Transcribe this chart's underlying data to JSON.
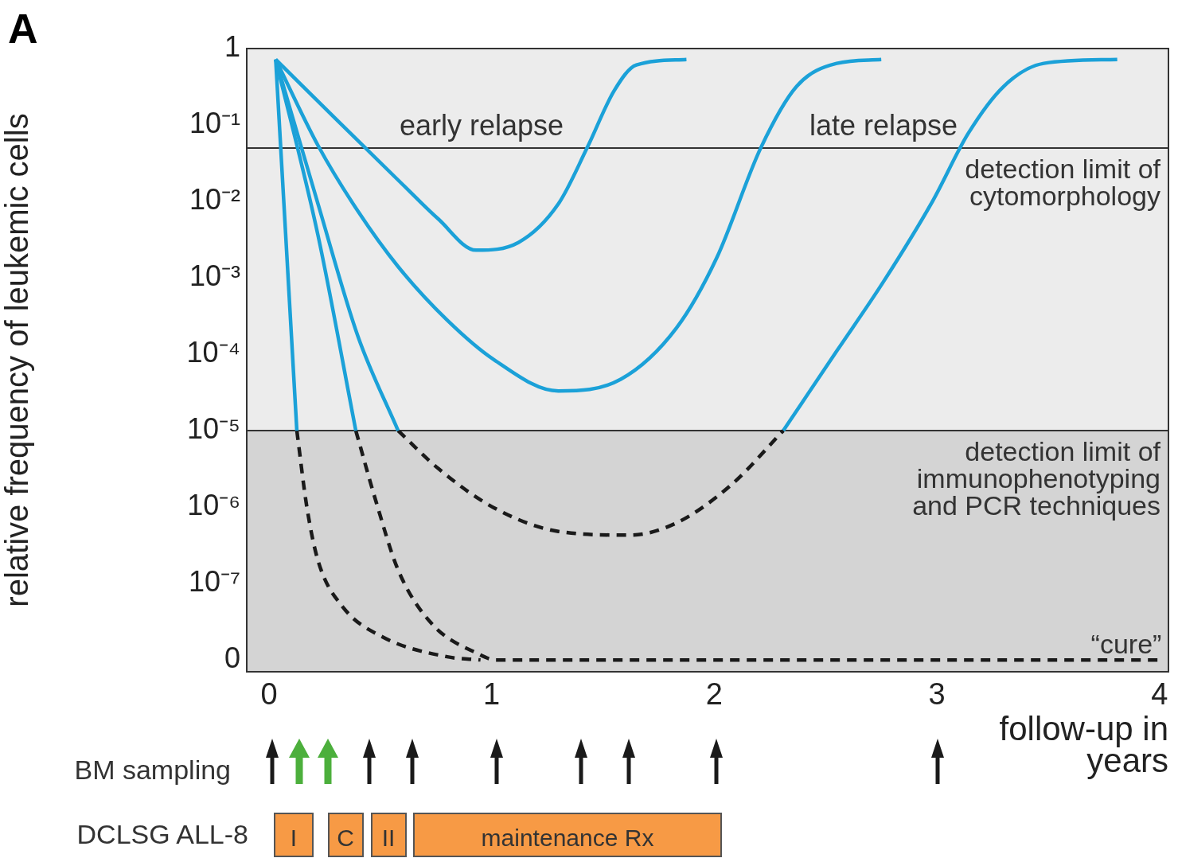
{
  "chart_data": {
    "type": "line",
    "title": "A",
    "xlabel": "follow-up in years",
    "ylabel": "relative frequency of leukemic cells",
    "log": "y",
    "grid": false,
    "legend": false,
    "xlim": [
      -0.1,
      4.04
    ],
    "xticks": [
      0,
      1,
      2,
      3,
      4
    ],
    "ylim": [
      7e-09,
      1
    ],
    "yticks": [
      1,
      {
        "value": 0.1,
        "label": "10⁻¹"
      },
      {
        "value": 0.01,
        "label": "10⁻²"
      },
      {
        "value": 0.001,
        "label": "10⁻³"
      },
      {
        "value": 0.0001,
        "label": "10⁻⁴"
      },
      {
        "value": 1e-05,
        "label": "10⁻⁵"
      },
      {
        "value": 1e-06,
        "label": "10⁻⁶"
      },
      {
        "value": 1e-07,
        "label": "10⁻⁷"
      },
      {
        "value": 1e-08,
        "label": "0"
      }
    ],
    "bands": [
      {
        "axis": "y",
        "from": 1e-05,
        "to": 1,
        "color": "#ececec"
      },
      {
        "axis": "y",
        "from": 7e-09,
        "to": 1e-05,
        "color": "#d4d4d4",
        "label": "detection limit of\nimmunophenotyping\nand PCR techniques"
      }
    ],
    "ref_lines": [
      {
        "axis": "y",
        "value": 0.05,
        "label": "detection limit of\ncytomorphology",
        "color": "#333333"
      },
      {
        "axis": "y",
        "value": 1e-05,
        "color": "#333333"
      }
    ],
    "annotations": [
      "early relapse",
      "late relapse",
      "“cure”",
      "BM sampling",
      "DCLSG ALL-8",
      "I",
      "C",
      "II",
      "maintenance Rx"
    ],
    "series": [
      {
        "color": "#1ba1d8",
        "line_style": "solid",
        "x": [
          0.03,
          0.3,
          0.58,
          0.76,
          0.93,
          1.12,
          1.3,
          1.43,
          1.55,
          1.65,
          1.875
        ],
        "values": [
          0.72,
          0.12,
          0.019,
          0.0059,
          0.0023,
          0.0029,
          0.0093,
          0.051,
          0.28,
          0.61,
          0.72
        ]
      },
      {
        "color": "#1ba1d8",
        "line_style": "solid",
        "x": [
          0.03,
          0.22,
          0.4,
          0.58,
          0.8,
          1.01,
          1.3,
          1.58,
          1.83,
          2.01,
          2.21,
          2.37,
          2.55,
          2.75
        ],
        "values": [
          0.72,
          0.054,
          0.0074,
          0.0014,
          0.00028,
          8.5e-05,
          3.3e-05,
          4.7e-05,
          0.00022,
          0.0018,
          0.051,
          0.32,
          0.64,
          0.72
        ]
      },
      {
        "color": "#1ba1d8",
        "line_style": "solid",
        "x": [
          0.03,
          0.22,
          0.4,
          0.58
        ],
        "values": [
          0.72,
          0.0093,
          0.00017,
          1e-05
        ]
      },
      {
        "color": "#1a1a1a",
        "line_style": "dashed",
        "x": [
          0.58,
          0.76,
          1.01,
          1.3,
          1.62,
          1.83,
          2.08,
          2.31
        ],
        "values": [
          1e-05,
          3.2e-06,
          9.8e-07,
          4.8e-07,
          4.3e-07,
          6.2e-07,
          2e-06,
          1e-05
        ]
      },
      {
        "color": "#1ba1d8",
        "line_style": "solid",
        "x": [
          2.31,
          2.55,
          2.76,
          2.98,
          3.14,
          3.3,
          3.48,
          3.81
        ],
        "values": [
          1e-05,
          0.00011,
          0.00089,
          0.01,
          0.077,
          0.32,
          0.64,
          0.72
        ]
      },
      {
        "color": "#1ba1d8",
        "line_style": "solid",
        "x": [
          0.03,
          0.22,
          0.39
        ],
        "values": [
          0.72,
          0.0036,
          1e-05
        ]
      },
      {
        "color": "#1a1a1a",
        "line_style": "dashed",
        "x": [
          0.39,
          0.48,
          0.58,
          0.73,
          0.94,
          1.02,
          4.0
        ],
        "values": [
          1e-05,
          1.2e-06,
          1.5e-07,
          3e-08,
          1.2e-08,
          1e-08,
          1e-08
        ]
      },
      {
        "color": "#1ba1d8",
        "line_style": "solid",
        "x": [
          0.03,
          0.125
        ],
        "values": [
          0.72,
          1e-05
        ]
      },
      {
        "color": "#1a1a1a",
        "line_style": "dashed",
        "x": [
          0.125,
          0.17,
          0.22,
          0.33,
          0.51,
          0.8,
          0.95
        ],
        "values": [
          1e-05,
          1e-06,
          2e-07,
          5e-08,
          2e-08,
          1.1e-08,
          1e-08
        ]
      }
    ]
  }
}
